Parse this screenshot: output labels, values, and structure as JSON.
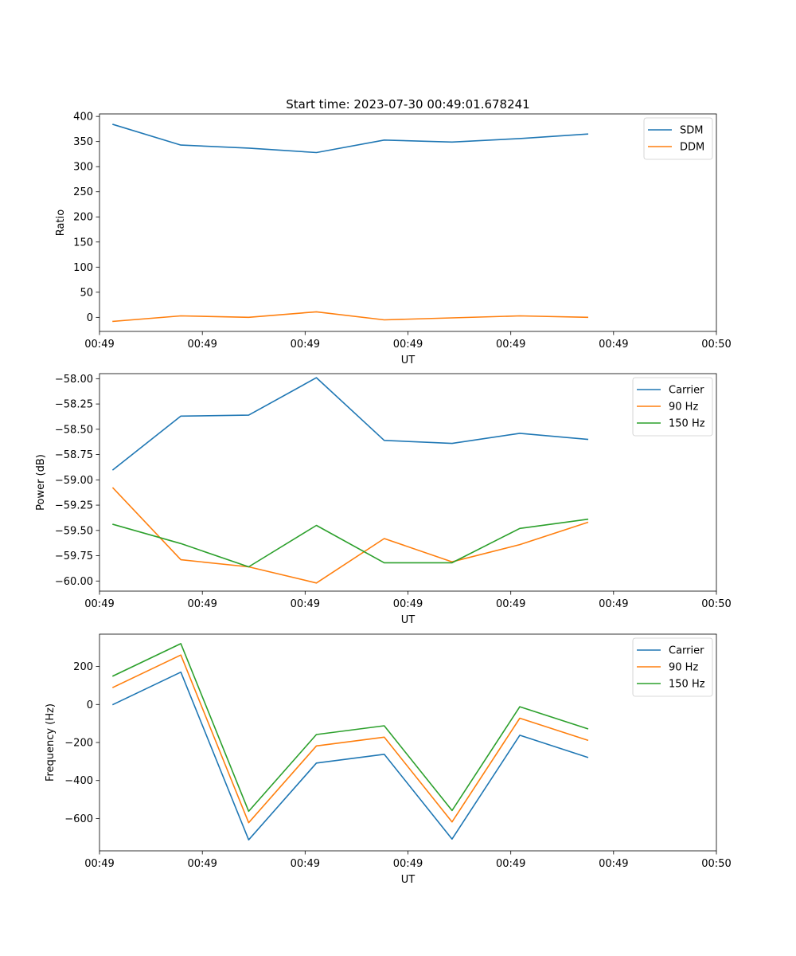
{
  "chart_data": [
    {
      "type": "line",
      "title": "Start time: 2023-07-30 00:49:01.678241",
      "xlabel": "UT",
      "ylabel": "Ratio",
      "x": [
        1,
        2,
        3,
        4,
        5,
        6,
        7,
        8
      ],
      "xlim": [
        0.8,
        9.9
      ],
      "xticks": [
        {
          "value": 0.8,
          "label": "00:49"
        },
        {
          "value": 2.317,
          "label": "00:49"
        },
        {
          "value": 3.833,
          "label": "00:49"
        },
        {
          "value": 5.35,
          "label": "00:49"
        },
        {
          "value": 6.867,
          "label": "00:49"
        },
        {
          "value": 8.383,
          "label": "00:49"
        },
        {
          "value": 9.9,
          "label": "00:50"
        }
      ],
      "ylim": [
        -28,
        405
      ],
      "yticks": [
        {
          "value": 0,
          "label": "0"
        },
        {
          "value": 50,
          "label": "50"
        },
        {
          "value": 100,
          "label": "100"
        },
        {
          "value": 150,
          "label": "150"
        },
        {
          "value": 200,
          "label": "200"
        },
        {
          "value": 250,
          "label": "250"
        },
        {
          "value": 300,
          "label": "300"
        },
        {
          "value": 350,
          "label": "350"
        },
        {
          "value": 400,
          "label": "400"
        }
      ],
      "legend": "top-right",
      "series": [
        {
          "name": "SDM",
          "color": "#1f77b4",
          "values": [
            384,
            343,
            337,
            328,
            353,
            349,
            356,
            365
          ]
        },
        {
          "name": "DDM",
          "color": "#ff7f0e",
          "values": [
            -8,
            3,
            0,
            11,
            -5,
            -1,
            3,
            0
          ]
        }
      ]
    },
    {
      "type": "line",
      "title": "",
      "xlabel": "UT",
      "ylabel": "Power (dB)",
      "x": [
        1,
        2,
        3,
        4,
        5,
        6,
        7,
        8
      ],
      "xlim": [
        0.8,
        9.9
      ],
      "xticks": [
        {
          "value": 0.8,
          "label": "00:49"
        },
        {
          "value": 2.317,
          "label": "00:49"
        },
        {
          "value": 3.833,
          "label": "00:49"
        },
        {
          "value": 5.35,
          "label": "00:49"
        },
        {
          "value": 6.867,
          "label": "00:49"
        },
        {
          "value": 8.383,
          "label": "00:49"
        },
        {
          "value": 9.9,
          "label": "00:50"
        }
      ],
      "ylim": [
        -60.1,
        -57.95
      ],
      "yticks": [
        {
          "value": -60.0,
          "label": "−60.00"
        },
        {
          "value": -59.75,
          "label": "−59.75"
        },
        {
          "value": -59.5,
          "label": "−59.50"
        },
        {
          "value": -59.25,
          "label": "−59.25"
        },
        {
          "value": -59.0,
          "label": "−59.00"
        },
        {
          "value": -58.75,
          "label": "−58.75"
        },
        {
          "value": -58.5,
          "label": "−58.50"
        },
        {
          "value": -58.25,
          "label": "−58.25"
        },
        {
          "value": -58.0,
          "label": "−58.00"
        }
      ],
      "legend": "top-right",
      "series": [
        {
          "name": "Carrier",
          "color": "#1f77b4",
          "values": [
            -58.9,
            -58.37,
            -58.36,
            -57.99,
            -58.61,
            -58.64,
            -58.54,
            -58.6
          ]
        },
        {
          "name": "90 Hz",
          "color": "#ff7f0e",
          "values": [
            -59.08,
            -59.79,
            -59.86,
            -60.02,
            -59.58,
            -59.81,
            -59.64,
            -59.42
          ]
        },
        {
          "name": "150 Hz",
          "color": "#2ca02c",
          "values": [
            -59.44,
            -59.63,
            -59.86,
            -59.45,
            -59.82,
            -59.82,
            -59.48,
            -59.39
          ]
        }
      ]
    },
    {
      "type": "line",
      "title": "",
      "xlabel": "UT",
      "ylabel": "Frequency (Hz)",
      "x": [
        1,
        2,
        3,
        4,
        5,
        6,
        7,
        8
      ],
      "xlim": [
        0.8,
        9.9
      ],
      "xticks": [
        {
          "value": 0.8,
          "label": "00:49"
        },
        {
          "value": 2.317,
          "label": "00:49"
        },
        {
          "value": 3.833,
          "label": "00:49"
        },
        {
          "value": 5.35,
          "label": "00:49"
        },
        {
          "value": 6.867,
          "label": "00:49"
        },
        {
          "value": 8.383,
          "label": "00:49"
        },
        {
          "value": 9.9,
          "label": "00:50"
        }
      ],
      "ylim": [
        -770,
        370
      ],
      "yticks": [
        {
          "value": -600,
          "label": "−600"
        },
        {
          "value": -400,
          "label": "−400"
        },
        {
          "value": -200,
          "label": "−200"
        },
        {
          "value": 0,
          "label": "0"
        },
        {
          "value": 200,
          "label": "200"
        }
      ],
      "legend": "top-right",
      "series": [
        {
          "name": "Carrier",
          "color": "#1f77b4",
          "values": [
            0,
            170,
            -712,
            -308,
            -262,
            -708,
            -162,
            -278
          ]
        },
        {
          "name": "90 Hz",
          "color": "#ff7f0e",
          "values": [
            90,
            260,
            -622,
            -218,
            -172,
            -618,
            -72,
            -188
          ]
        },
        {
          "name": "150 Hz",
          "color": "#2ca02c",
          "values": [
            150,
            320,
            -562,
            -158,
            -112,
            -558,
            -12,
            -128
          ]
        }
      ]
    }
  ]
}
